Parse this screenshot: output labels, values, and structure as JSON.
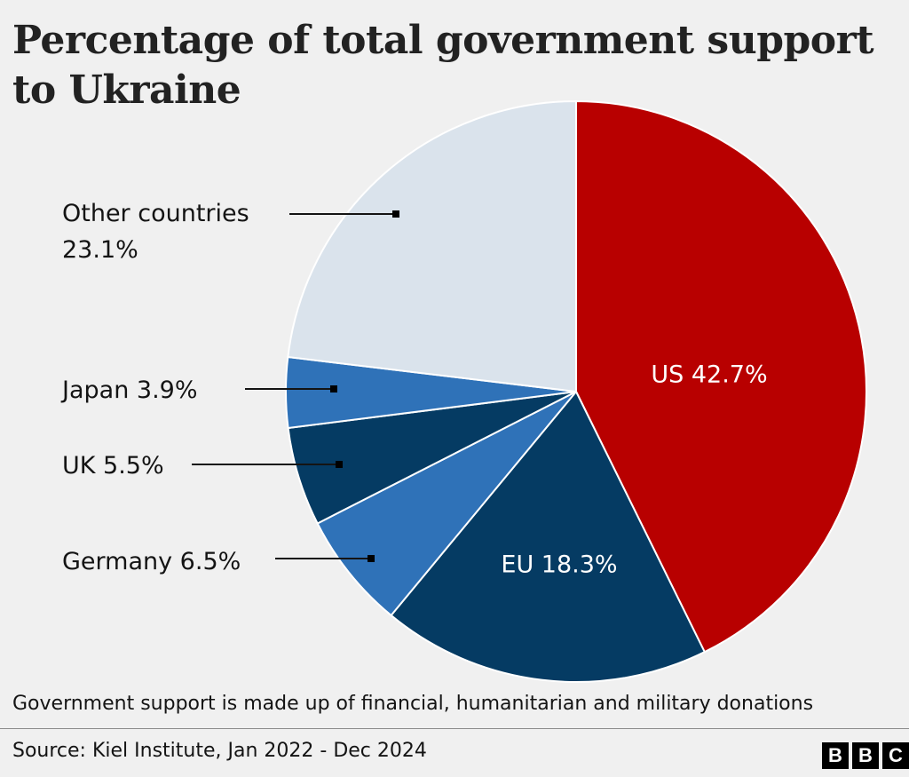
{
  "title": "Percentage of total government support to Ukraine",
  "note": "Government support is made up of financial, humanitarian and military donations",
  "source": "Source: Kiel Institute, Jan 2022 - Dec 2024",
  "logo_letters": [
    "B",
    "B",
    "C"
  ],
  "chart_data": {
    "type": "pie",
    "title": "Percentage of total government support to Ukraine",
    "unit": "%",
    "slices": [
      {
        "name": "US",
        "label": "US 42.7%",
        "value": 42.7,
        "color": "#b80000"
      },
      {
        "name": "EU",
        "label": "EU 18.3%",
        "value": 18.3,
        "color": "#053b63"
      },
      {
        "name": "Germany",
        "label": "Germany 6.5%",
        "value": 6.5,
        "color": "#2f72b8"
      },
      {
        "name": "UK",
        "label": "UK 5.5%",
        "value": 5.5,
        "color": "#053b63"
      },
      {
        "name": "Japan",
        "label": "Japan 3.9%",
        "value": 3.9,
        "color": "#2f72b8"
      },
      {
        "name": "Other countries",
        "label_lines": [
          "Other countries",
          "23.1%"
        ],
        "value": 23.1,
        "color": "#dae3ec"
      }
    ]
  }
}
